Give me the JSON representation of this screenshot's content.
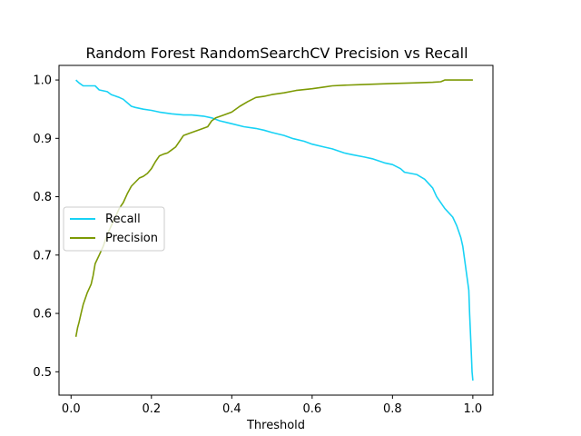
{
  "chart_data": {
    "type": "line",
    "title": "Random Forest RandomSearchCV Precision vs Recall",
    "xlabel": "Threshold",
    "ylabel": "",
    "xlim": [
      -0.03,
      1.05
    ],
    "ylim": [
      0.46,
      1.025
    ],
    "xticks": [
      0.0,
      0.2,
      0.4,
      0.6,
      0.8,
      1.0
    ],
    "xtick_labels": [
      "0.0",
      "0.2",
      "0.4",
      "0.6",
      "0.8",
      "1.0"
    ],
    "yticks": [
      0.5,
      0.6,
      0.7,
      0.8,
      0.9,
      1.0
    ],
    "ytick_labels": [
      "0.5",
      "0.6",
      "0.7",
      "0.8",
      "0.9",
      "1.0"
    ],
    "grid": false,
    "legend_location": "center-left",
    "series": [
      {
        "name": "Recall",
        "color": "#17d2f5",
        "x": [
          0.012,
          0.02,
          0.03,
          0.06,
          0.07,
          0.09,
          0.1,
          0.12,
          0.13,
          0.15,
          0.16,
          0.18,
          0.2,
          0.22,
          0.25,
          0.28,
          0.3,
          0.33,
          0.35,
          0.37,
          0.4,
          0.43,
          0.46,
          0.48,
          0.5,
          0.53,
          0.55,
          0.58,
          0.6,
          0.63,
          0.65,
          0.68,
          0.7,
          0.73,
          0.75,
          0.78,
          0.8,
          0.82,
          0.83,
          0.86,
          0.88,
          0.9,
          0.91,
          0.93,
          0.95,
          0.96,
          0.97,
          0.975,
          0.98,
          0.985,
          0.99,
          0.992,
          0.995,
          0.997,
          0.998,
          1.0
        ],
        "values": [
          1.0,
          0.995,
          0.99,
          0.99,
          0.983,
          0.98,
          0.975,
          0.97,
          0.967,
          0.955,
          0.953,
          0.95,
          0.948,
          0.945,
          0.942,
          0.94,
          0.94,
          0.938,
          0.935,
          0.93,
          0.925,
          0.92,
          0.917,
          0.914,
          0.91,
          0.905,
          0.9,
          0.895,
          0.89,
          0.885,
          0.882,
          0.875,
          0.872,
          0.868,
          0.865,
          0.858,
          0.855,
          0.848,
          0.842,
          0.838,
          0.83,
          0.815,
          0.8,
          0.78,
          0.765,
          0.75,
          0.73,
          0.715,
          0.69,
          0.665,
          0.64,
          0.6,
          0.55,
          0.52,
          0.5,
          0.485
        ]
      },
      {
        "name": "Precision",
        "color": "#7d9a05",
        "x": [
          0.012,
          0.016,
          0.02,
          0.025,
          0.03,
          0.04,
          0.05,
          0.055,
          0.06,
          0.07,
          0.08,
          0.09,
          0.1,
          0.11,
          0.12,
          0.13,
          0.14,
          0.15,
          0.16,
          0.17,
          0.18,
          0.19,
          0.2,
          0.21,
          0.22,
          0.23,
          0.24,
          0.25,
          0.26,
          0.27,
          0.28,
          0.3,
          0.32,
          0.34,
          0.35,
          0.36,
          0.38,
          0.4,
          0.42,
          0.44,
          0.46,
          0.48,
          0.5,
          0.53,
          0.56,
          0.6,
          0.63,
          0.65,
          0.68,
          0.72,
          0.76,
          0.8,
          0.85,
          0.9,
          0.92,
          0.93,
          0.95,
          0.98,
          1.0
        ],
        "values": [
          0.56,
          0.575,
          0.585,
          0.6,
          0.615,
          0.635,
          0.65,
          0.665,
          0.685,
          0.7,
          0.715,
          0.735,
          0.75,
          0.765,
          0.78,
          0.79,
          0.805,
          0.818,
          0.825,
          0.832,
          0.835,
          0.84,
          0.848,
          0.86,
          0.87,
          0.873,
          0.875,
          0.88,
          0.885,
          0.895,
          0.905,
          0.91,
          0.915,
          0.92,
          0.93,
          0.935,
          0.94,
          0.945,
          0.955,
          0.963,
          0.97,
          0.972,
          0.975,
          0.978,
          0.982,
          0.985,
          0.988,
          0.99,
          0.991,
          0.992,
          0.993,
          0.994,
          0.995,
          0.996,
          0.997,
          1.0,
          1.0,
          1.0,
          1.0
        ]
      }
    ]
  }
}
